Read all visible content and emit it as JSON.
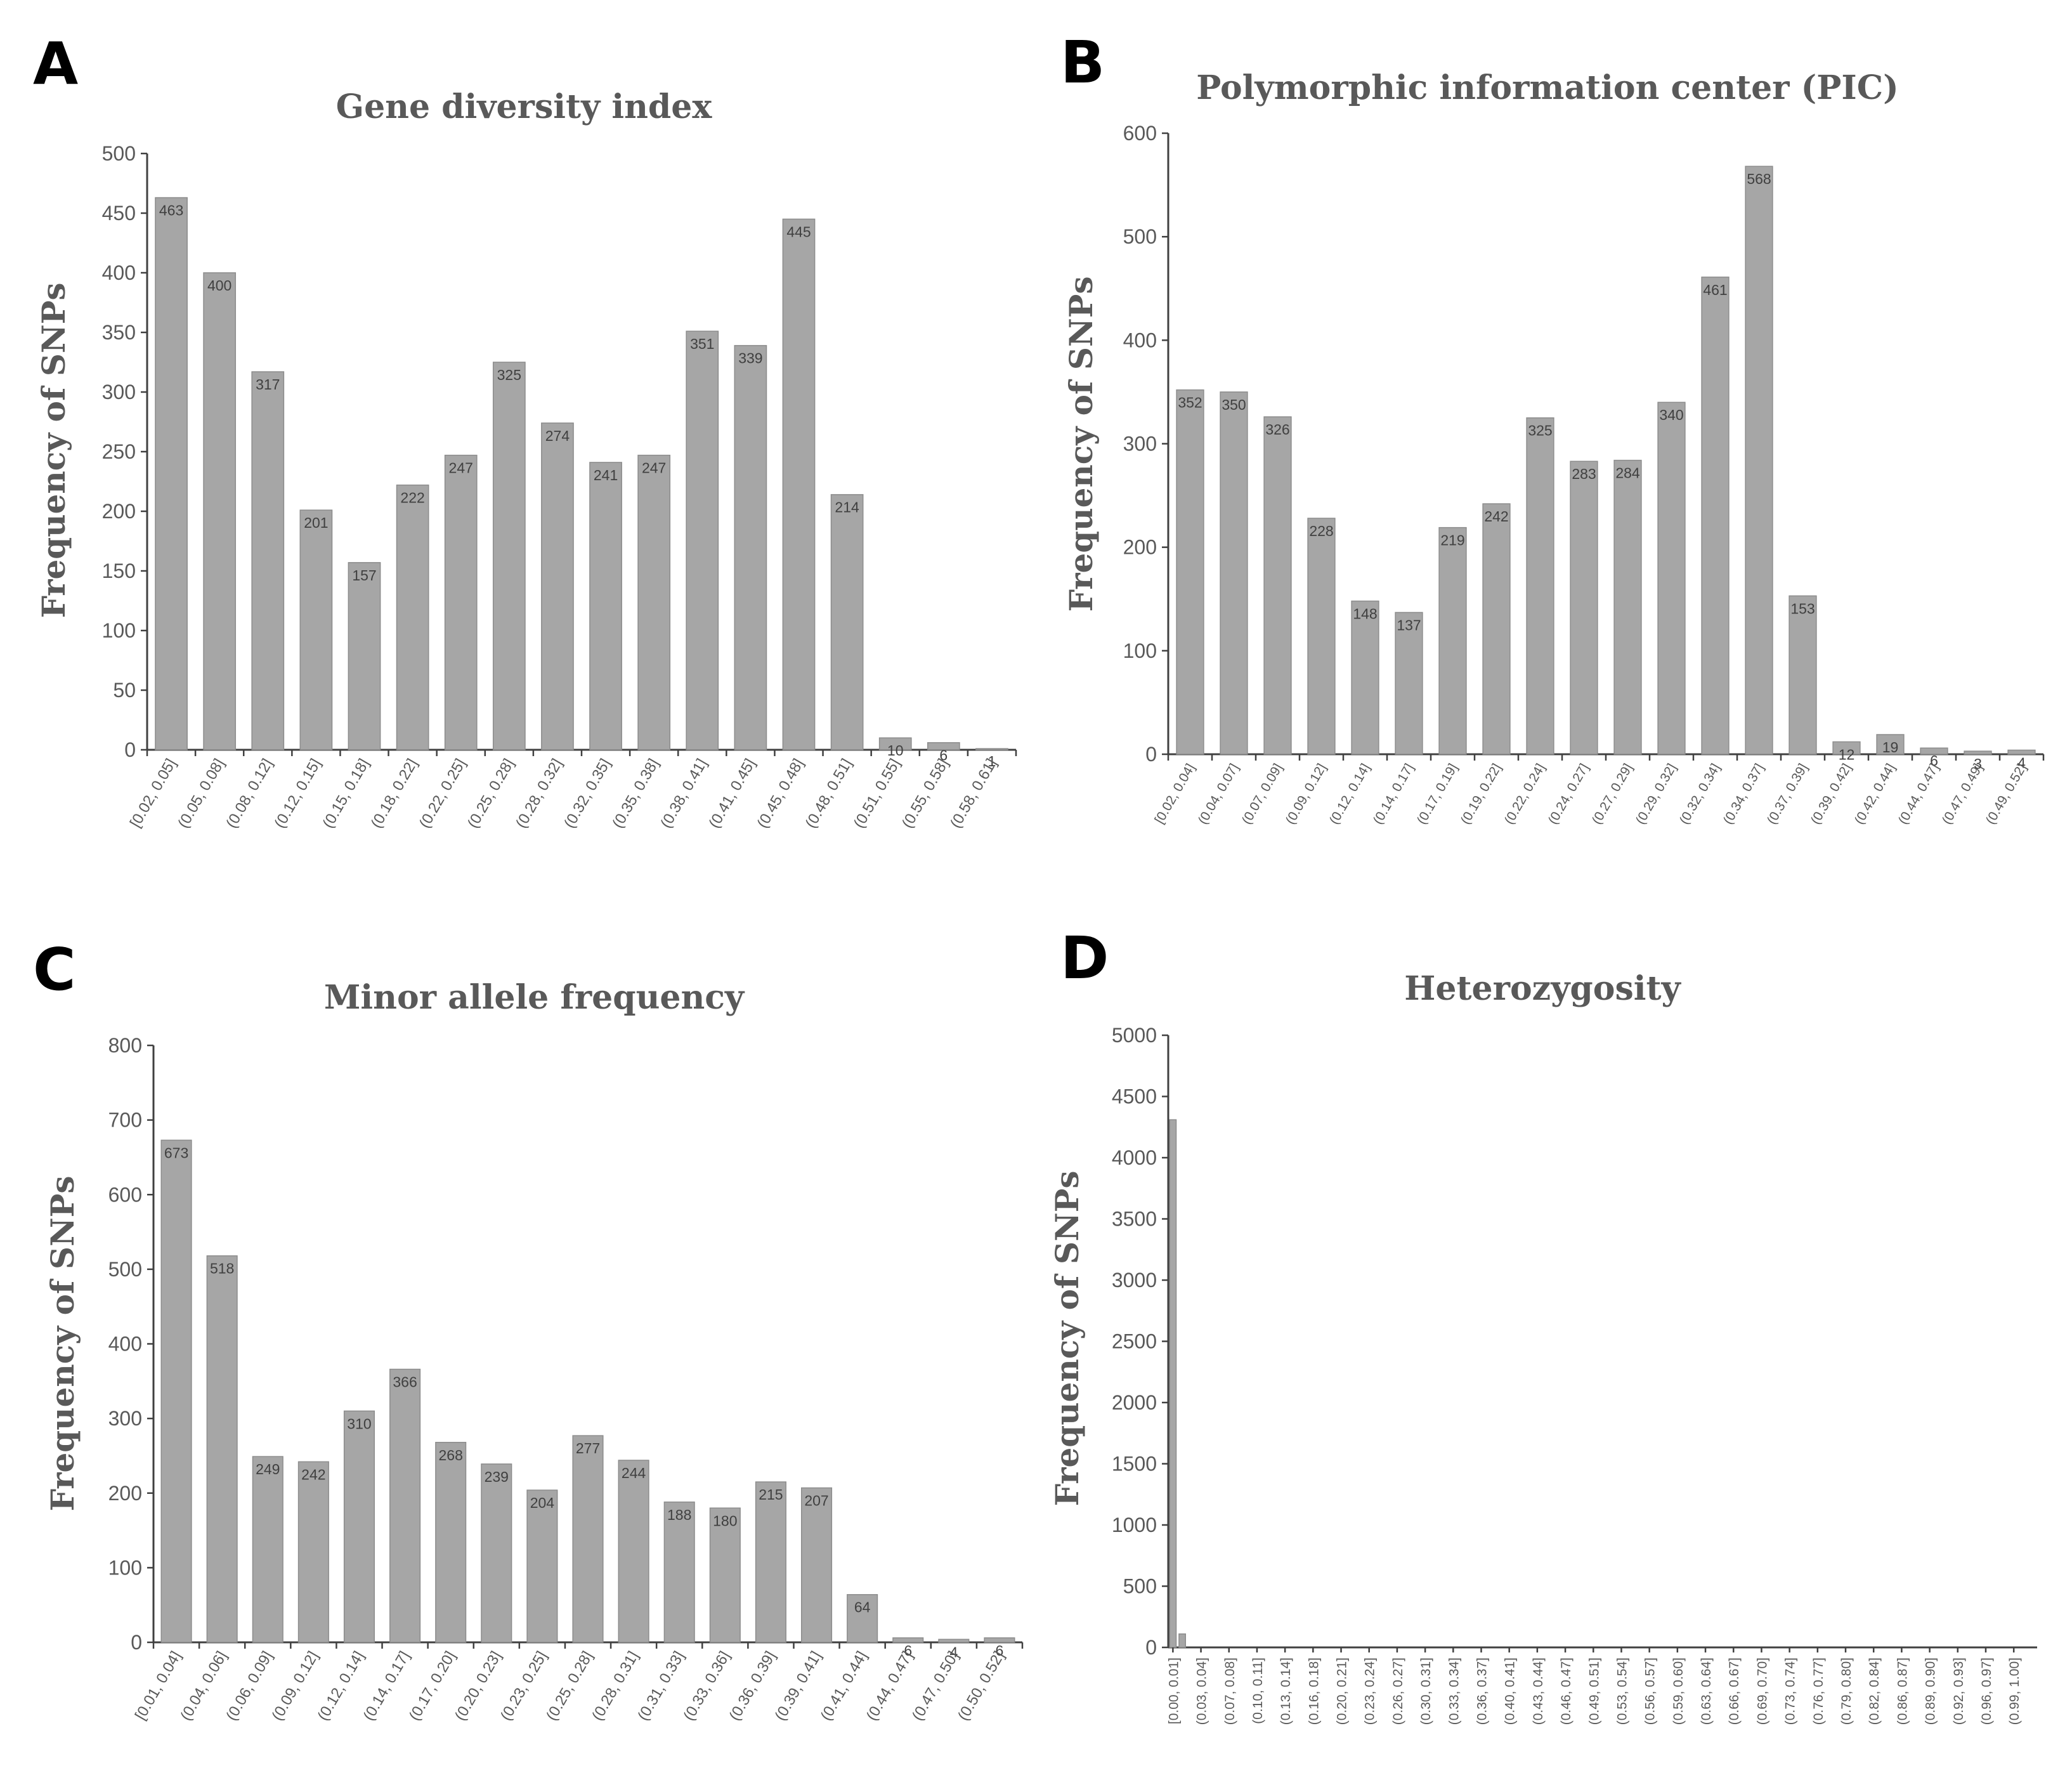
{
  "panels": [
    {
      "letter": "A",
      "chart_data": {
        "type": "bar",
        "title": "Gene diversity index",
        "xlabel": "",
        "ylabel": "Frequency of SNPs",
        "ylim": [
          0,
          500
        ],
        "yticks": [
          0,
          50,
          100,
          150,
          200,
          250,
          300,
          350,
          400,
          450,
          500
        ],
        "categories": [
          "[0.02, 0.05]",
          "(0.05, 0.08]",
          "(0.08, 0.12]",
          "(0.12, 0.15]",
          "(0.15, 0.18]",
          "(0.18, 0.22]",
          "(0.22, 0.25]",
          "(0.25, 0.28]",
          "(0.28, 0.32]",
          "(0.32, 0.35]",
          "(0.35, 0.38]",
          "(0.38, 0.41]",
          "(0.41, 0.45]",
          "(0.45, 0.48]",
          "(0.48, 0.51]",
          "(0.51, 0.55]",
          "(0.55, 0.58]",
          "(0.58, 0.61]"
        ],
        "values": [
          463,
          400,
          317,
          201,
          157,
          222,
          247,
          325,
          274,
          241,
          247,
          351,
          339,
          445,
          214,
          10,
          6,
          1
        ],
        "data_labels": [
          "463",
          "400",
          "317",
          "201",
          "157",
          "222",
          "247",
          "325",
          "274",
          "241",
          "247",
          "351",
          "339",
          "445",
          "214",
          "10",
          "6",
          "1"
        ],
        "grid": false
      }
    },
    {
      "letter": "B",
      "chart_data": {
        "type": "bar",
        "title": "Polymorphic information center (PIC)",
        "xlabel": "",
        "ylabel": "Frequency of SNPs",
        "ylim": [
          0,
          600
        ],
        "yticks": [
          0,
          100,
          200,
          300,
          400,
          500,
          600
        ],
        "categories": [
          "[0.02, 0.04]",
          "(0.04, 0.07]",
          "(0.07, 0.09]",
          "(0.09, 0.12]",
          "(0.12, 0.14]",
          "(0.14, 0.17]",
          "(0.17, 0.19]",
          "(0.19, 0.22]",
          "(0.22, 0.24]",
          "(0.24, 0.27]",
          "(0.27, 0.29]",
          "(0.29, 0.32]",
          "(0.32, 0.34]",
          "(0.34, 0.37]",
          "(0.37, 0.39]",
          "(0.39, 0.42]",
          "(0.42, 0.44]",
          "(0.44, 0.47]",
          "(0.47, 0.49]",
          "(0.49, 0.52]"
        ],
        "values": [
          352,
          350,
          326,
          228,
          148,
          137,
          219,
          242,
          325,
          283,
          284,
          340,
          461,
          568,
          153,
          12,
          19,
          6,
          3,
          4
        ],
        "data_labels": [
          "352",
          "350",
          "326",
          "228",
          "148",
          "137",
          "219",
          "242",
          "325",
          "283",
          "284",
          "340",
          "461",
          "568",
          "153",
          "12",
          "19",
          "6",
          "3",
          "4"
        ],
        "grid": false
      }
    },
    {
      "letter": "C",
      "chart_data": {
        "type": "bar",
        "title": "Minor allele frequency",
        "xlabel": "",
        "ylabel": "Frequency of SNPs",
        "ylim": [
          0,
          800
        ],
        "yticks": [
          0,
          100,
          200,
          300,
          400,
          500,
          600,
          700,
          800
        ],
        "categories": [
          "[0.01, 0.04]",
          "(0.04, 0.06]",
          "(0.06, 0.09]",
          "(0.09, 0.12]",
          "(0.12, 0.14]",
          "(0.14, 0.17]",
          "(0.17, 0.20]",
          "(0.20, 0.23]",
          "(0.23, 0.25]",
          "(0.25, 0.28]",
          "(0.28, 0.31]",
          "(0.31, 0.33]",
          "(0.33, 0.36]",
          "(0.36, 0.39]",
          "(0.39, 0.41]",
          "(0.41, 0.44]",
          "(0.44, 0.47]",
          "(0.47, 0.50]",
          "(0.50, 0.52]"
        ],
        "values": [
          673,
          518,
          249,
          242,
          310,
          366,
          268,
          239,
          204,
          277,
          244,
          188,
          180,
          215,
          207,
          64,
          6,
          4,
          6
        ],
        "data_labels": [
          "673",
          "518",
          "249",
          "242",
          "310",
          "366",
          "268",
          "239",
          "204",
          "277",
          "244",
          "188",
          "180",
          "215",
          "207",
          "64",
          "6",
          "4",
          "6"
        ],
        "grid": false
      }
    },
    {
      "letter": "D",
      "chart_data": {
        "type": "bar",
        "title": "Heterozygosity",
        "xlabel": "",
        "ylabel": "Frequency of SNPs",
        "ylim": [
          0,
          5000
        ],
        "yticks": [
          0,
          500,
          1000,
          1500,
          2000,
          2500,
          3000,
          3500,
          4000,
          4500,
          5000
        ],
        "categories": [
          "[0.00, 0.01]",
          "(0.03, 0.04]",
          "(0.07, 0.08]",
          "(0.10, 0.11]",
          "(0.13, 0.14]",
          "(0.16, 0.18]",
          "(0.20, 0.21]",
          "(0.23, 0.24]",
          "(0.26, 0.27]",
          "(0.30, 0.31]",
          "(0.33, 0.34]",
          "(0.36, 0.37]",
          "(0.40, 0.41]",
          "(0.43, 0.44]",
          "(0.46, 0.47]",
          "(0.49, 0.51]",
          "(0.53, 0.54]",
          "(0.56, 0.57]",
          "(0.59, 0.60]",
          "(0.63, 0.64]",
          "(0.66, 0.67]",
          "(0.69, 0.70]",
          "(0.73, 0.74]",
          "(0.76, 0.77]",
          "(0.79, 0.80]",
          "(0.82, 0.84]",
          "(0.86, 0.87]",
          "(0.89, 0.90]",
          "(0.92, 0.93]",
          "(0.96, 0.97]",
          "(0.99, 1.00]"
        ],
        "bin_count": 93,
        "label_every": 3,
        "values_by_bin": [
          4310,
          110
        ],
        "grid": false
      }
    }
  ]
}
